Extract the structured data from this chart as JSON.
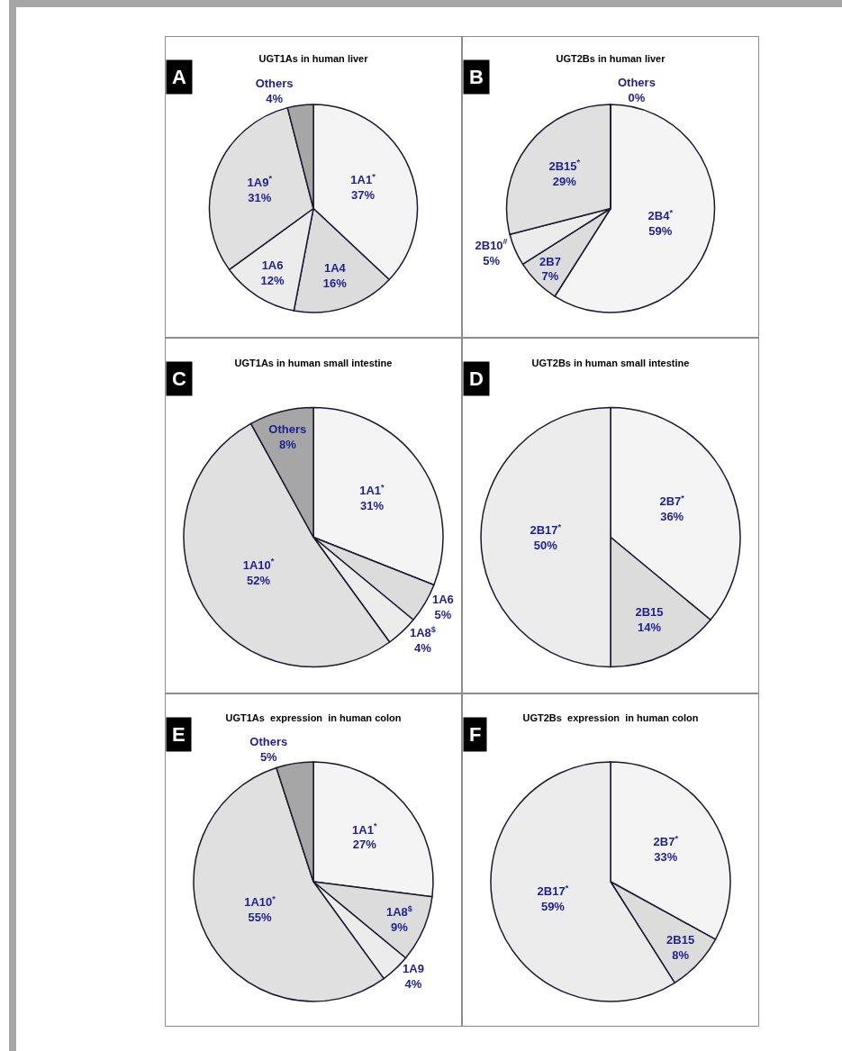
{
  "chart_data": [
    {
      "type": "pie",
      "title": "UGT1As in human liver",
      "annotations": [
        "A"
      ],
      "categories": [
        "1A1$^{*}$",
        "1A4",
        "1A6",
        "1A9$^{*}$",
        "Others"
      ],
      "values": [
        37,
        16,
        12,
        31,
        4
      ],
      "value_labels": [
        "37%",
        "16%",
        "12%",
        "31%",
        "4%"
      ],
      "colors": [
        "#f4f4f4",
        "#dcdcdc",
        "#ececec",
        "#e0e0e0",
        "#a6a6a6"
      ]
    },
    {
      "type": "pie",
      "title": "UGT2Bs in human liver",
      "annotations": [
        "B"
      ],
      "categories": [
        "2B4$^{*}$",
        "2B7",
        "2B10$^{#}$",
        "2B15$^{*}$",
        "Others"
      ],
      "values": [
        59,
        7,
        5,
        29,
        0
      ],
      "value_labels": [
        "59%",
        "7%",
        "5%",
        "29%",
        "0%"
      ],
      "colors": [
        "#f4f4f4",
        "#dcdcdc",
        "#ececec",
        "#e0e0e0",
        "#a6a6a6"
      ]
    },
    {
      "type": "pie",
      "title": "UGT1As in human small intestine",
      "annotations": [
        "C"
      ],
      "categories": [
        "1A1$^{*}$",
        "1A6",
        "1A8$^{$}$",
        "1A10$^{*}$",
        "Others"
      ],
      "values": [
        31,
        5,
        4,
        52,
        8
      ],
      "value_labels": [
        "31%",
        "5%",
        "4%",
        "52%",
        "8%"
      ],
      "colors": [
        "#f4f4f4",
        "#dcdcdc",
        "#ececec",
        "#e0e0e0",
        "#a6a6a6"
      ]
    },
    {
      "type": "pie",
      "title": "UGT2Bs in human small intestine",
      "annotations": [
        "D"
      ],
      "categories": [
        "2B7$^{*}$",
        "2B15",
        "2B17$^{*}$"
      ],
      "values": [
        36,
        14,
        50
      ],
      "value_labels": [
        "36%",
        "14%",
        "50%"
      ],
      "colors": [
        "#f4f4f4",
        "#dcdcdc",
        "#ececec"
      ]
    },
    {
      "type": "pie",
      "title": "UGT1As  expression  in human colon",
      "annotations": [
        "E"
      ],
      "categories": [
        "1A1$^{*}$",
        "1A8$^{$}$",
        "1A9",
        "1A10$^{*}$",
        "Others"
      ],
      "values": [
        27,
        9,
        4,
        55,
        5
      ],
      "value_labels": [
        "27%",
        "9%",
        "4%",
        "55%",
        "5%"
      ],
      "colors": [
        "#f4f4f4",
        "#dcdcdc",
        "#ececec",
        "#e0e0e0",
        "#a6a6a6"
      ]
    },
    {
      "type": "pie",
      "title": "UGT2Bs  expression  in human colon",
      "annotations": [
        "F"
      ],
      "categories": [
        "2B7$^{*}$",
        "2B15",
        "2B17$^{*}$"
      ],
      "values": [
        33,
        8,
        59
      ],
      "value_labels": [
        "33%",
        "8%",
        "59%"
      ],
      "colors": [
        "#f4f4f4",
        "#dcdcdc",
        "#ececec"
      ]
    }
  ]
}
